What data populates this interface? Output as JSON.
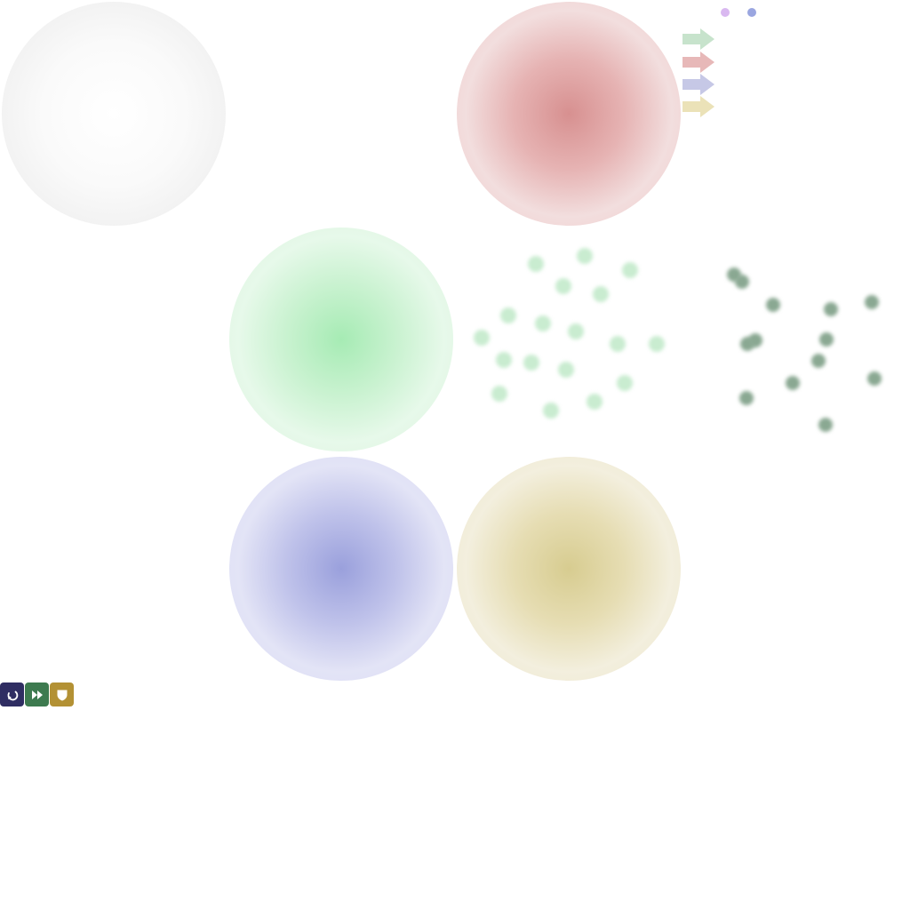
{
  "orbs": [
    {
      "id": "orb-white",
      "color": "#f2f2f2",
      "name": "white-orb"
    },
    {
      "id": "orb-red",
      "color": "#d79090",
      "name": "red-orb"
    },
    {
      "id": "orb-green",
      "color": "#a6ebb4",
      "name": "green-orb"
    },
    {
      "id": "orb-blue",
      "color": "#9aa0dc",
      "name": "blue-orb"
    },
    {
      "id": "orb-yellow",
      "color": "#d7cc90",
      "name": "yellow-orb"
    }
  ],
  "legend_arrows": [
    {
      "color": "#c7e3cc",
      "icon": "green-arrow-icon"
    },
    {
      "color": "#e7b8b8",
      "icon": "red-arrow-icon"
    },
    {
      "color": "#c6c8e6",
      "icon": "blue-arrow-icon"
    },
    {
      "color": "#ebe2b8",
      "icon": "yellow-arrow-icon"
    }
  ],
  "indicators": [
    {
      "color": "#d9b8f0",
      "name": "purple-indicator"
    },
    {
      "color": "#9aa6e0",
      "name": "blue-indicator"
    }
  ],
  "particles": {
    "light_color": "#c9ecd0",
    "dark_color": "#8aa892"
  },
  "toolbar": [
    {
      "name": "undo-button",
      "icon": "undo-icon",
      "color": "#2f2d62"
    },
    {
      "name": "fast-forward-button",
      "icon": "fast-forward-icon",
      "color": "#3d7a4f"
    },
    {
      "name": "shield-button",
      "icon": "shield-icon",
      "color": "#b39134"
    }
  ]
}
